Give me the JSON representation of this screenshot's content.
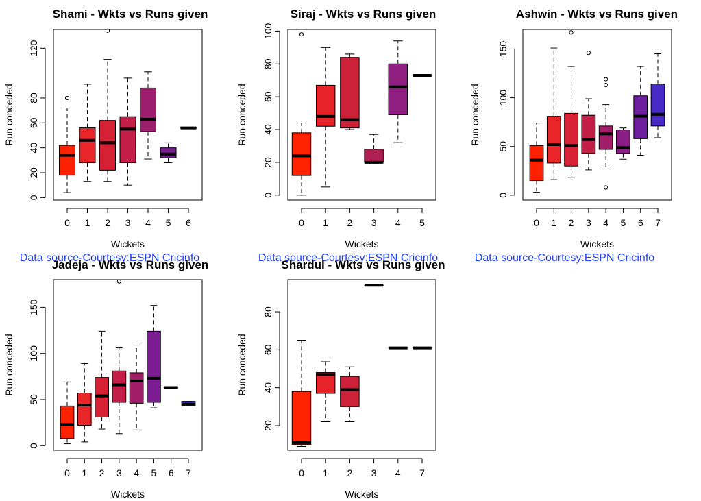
{
  "chart_data": [
    {
      "type": "boxplot",
      "title": "Shami - Wkts vs Runs given",
      "xlabel": "Wickets",
      "ylabel": "Run conceded",
      "ylim": [
        -2,
        135
      ],
      "yticks": [
        0,
        20,
        40,
        60,
        80,
        120
      ],
      "categories": [
        "0",
        "1",
        "2",
        "3",
        "4",
        "5",
        "6"
      ],
      "boxes": [
        {
          "x": "0",
          "min": 4,
          "q1": 18,
          "median": 34,
          "q3": 42,
          "max": 72,
          "outliers": [
            80
          ]
        },
        {
          "x": "1",
          "min": 13,
          "q1": 28,
          "median": 46,
          "q3": 56,
          "max": 91,
          "outliers": []
        },
        {
          "x": "2",
          "min": 13,
          "q1": 22,
          "median": 44,
          "q3": 62,
          "max": 111,
          "outliers": [
            134
          ]
        },
        {
          "x": "3",
          "min": 10,
          "q1": 28,
          "median": 55,
          "q3": 65,
          "max": 96,
          "outliers": []
        },
        {
          "x": "4",
          "min": 31,
          "q1": 53,
          "median": 63,
          "q3": 88,
          "max": 101,
          "outliers": []
        },
        {
          "x": "5",
          "min": 28,
          "q1": 32,
          "median": 35,
          "q3": 40,
          "max": 44,
          "outliers": []
        },
        {
          "x": "6",
          "min": 56,
          "q1": 56,
          "median": 56,
          "q3": 56,
          "max": 56,
          "outliers": []
        }
      ],
      "colors": [
        "#FF2200",
        "#E8262A",
        "#D62134",
        "#C41F47",
        "#9E1E6E",
        "#7A1E91",
        "#5A1FAE"
      ],
      "caption": "Data source-Courtesy:ESPN Cricinfo"
    },
    {
      "type": "boxplot",
      "title": "Siraj - Wkts vs Runs given",
      "xlabel": "Wickets",
      "ylabel": "Run conceded",
      "ylim": [
        -3,
        101
      ],
      "yticks": [
        0,
        20,
        40,
        60,
        80,
        100
      ],
      "categories": [
        "0",
        "1",
        "2",
        "3",
        "4",
        "5"
      ],
      "boxes": [
        {
          "x": "0",
          "min": 0,
          "q1": 12,
          "median": 24,
          "q3": 38,
          "max": 44,
          "outliers": [
            98
          ]
        },
        {
          "x": "1",
          "min": 5,
          "q1": 42,
          "median": 48,
          "q3": 67,
          "max": 90,
          "outliers": []
        },
        {
          "x": "2",
          "min": 40,
          "q1": 41,
          "median": 46,
          "q3": 84,
          "max": 86,
          "outliers": []
        },
        {
          "x": "3",
          "min": 19,
          "q1": 20,
          "median": 20,
          "q3": 28,
          "max": 37,
          "outliers": []
        },
        {
          "x": "4",
          "min": 32,
          "q1": 49,
          "median": 66,
          "q3": 80,
          "max": 94,
          "outliers": []
        },
        {
          "x": "5",
          "min": 73,
          "q1": 73,
          "median": 73,
          "q3": 73,
          "max": 73,
          "outliers": []
        }
      ],
      "colors": [
        "#FF2200",
        "#E62328",
        "#CC2138",
        "#B01F52",
        "#8E1E7F",
        "#6A1FA2"
      ],
      "caption": "Data source-Courtesy:ESPN Cricinfo"
    },
    {
      "type": "boxplot",
      "title": "Ashwin - Wkts vs Runs given",
      "xlabel": "Wickets",
      "ylabel": "Run conceded",
      "ylim": [
        -5,
        170
      ],
      "yticks": [
        0,
        50,
        100,
        150
      ],
      "categories": [
        "0",
        "1",
        "2",
        "3",
        "4",
        "5",
        "6",
        "7"
      ],
      "boxes": [
        {
          "x": "0",
          "min": 3,
          "q1": 15,
          "median": 36,
          "q3": 51,
          "max": 74,
          "outliers": []
        },
        {
          "x": "1",
          "min": 16,
          "q1": 33,
          "median": 52,
          "q3": 81,
          "max": 151,
          "outliers": []
        },
        {
          "x": "2",
          "min": 18,
          "q1": 30,
          "median": 51,
          "q3": 84,
          "max": 132,
          "outliers": [
            167
          ]
        },
        {
          "x": "3",
          "min": 26,
          "q1": 43,
          "median": 57,
          "q3": 82,
          "max": 99,
          "outliers": [
            146
          ]
        },
        {
          "x": "4",
          "min": 27,
          "q1": 47,
          "median": 63,
          "q3": 71,
          "max": 93,
          "outliers": [
            8,
            113,
            119
          ]
        },
        {
          "x": "5",
          "min": 37,
          "q1": 43,
          "median": 49,
          "q3": 67,
          "max": 69,
          "outliers": []
        },
        {
          "x": "6",
          "min": 41,
          "q1": 58,
          "median": 81,
          "q3": 102,
          "max": 132,
          "outliers": []
        },
        {
          "x": "7",
          "min": 59,
          "q1": 71,
          "median": 83,
          "q3": 114,
          "max": 145,
          "outliers": []
        }
      ],
      "colors": [
        "#FF2200",
        "#E8262A",
        "#D62134",
        "#C41F47",
        "#A31E69",
        "#8A1E84",
        "#6D1F9D",
        "#4A2AC4"
      ],
      "caption": "Data source-Courtesy:ESPN Cricinfo"
    },
    {
      "type": "boxplot",
      "title": "Jadeja - Wkts vs Runs given",
      "xlabel": "Wickets",
      "ylabel": "Run conceded",
      "ylim": [
        -5,
        180
      ],
      "yticks": [
        0,
        50,
        100,
        150
      ],
      "categories": [
        "0",
        "1",
        "2",
        "3",
        "4",
        "5",
        "6",
        "7"
      ],
      "boxes": [
        {
          "x": "0",
          "min": 2,
          "q1": 8,
          "median": 23,
          "q3": 43,
          "max": 69,
          "outliers": []
        },
        {
          "x": "1",
          "min": 4,
          "q1": 22,
          "median": 44,
          "q3": 57,
          "max": 89,
          "outliers": []
        },
        {
          "x": "2",
          "min": 18,
          "q1": 31,
          "median": 54,
          "q3": 74,
          "max": 124,
          "outliers": []
        },
        {
          "x": "3",
          "min": 13,
          "q1": 47,
          "median": 66,
          "q3": 81,
          "max": 106,
          "outliers": [
            178
          ]
        },
        {
          "x": "4",
          "min": 17,
          "q1": 46,
          "median": 70,
          "q3": 79,
          "max": 109,
          "outliers": []
        },
        {
          "x": "5",
          "min": 41,
          "q1": 47,
          "median": 73,
          "q3": 124,
          "max": 152,
          "outliers": []
        },
        {
          "x": "6",
          "min": 63,
          "q1": 63,
          "median": 63,
          "q3": 63,
          "max": 63,
          "outliers": []
        },
        {
          "x": "7",
          "min": 43,
          "q1": 43,
          "median": 45,
          "q3": 48,
          "max": 48,
          "outliers": []
        }
      ],
      "colors": [
        "#FF2200",
        "#E8262A",
        "#D62134",
        "#C41F47",
        "#A31E69",
        "#7A1E91",
        "#5A1FAE",
        "#3A35D8"
      ],
      "caption": ""
    },
    {
      "type": "boxplot",
      "title": "Shardul - Wkts vs Runs given",
      "xlabel": "Wickets",
      "ylabel": "Run conceded",
      "ylim": [
        7,
        97
      ],
      "yticks": [
        20,
        40,
        60,
        80
      ],
      "categories": [
        "0",
        "1",
        "2",
        "3",
        "4",
        "7"
      ],
      "boxes": [
        {
          "x": "0",
          "min": 9,
          "q1": 10,
          "median": 11,
          "q3": 38,
          "max": 65,
          "outliers": []
        },
        {
          "x": "1",
          "min": 22,
          "q1": 37,
          "median": 47,
          "q3": 48,
          "max": 54,
          "outliers": []
        },
        {
          "x": "2",
          "min": 22,
          "q1": 30,
          "median": 39,
          "q3": 46,
          "max": 51,
          "outliers": []
        },
        {
          "x": "3",
          "min": 94,
          "q1": 94,
          "median": 94,
          "q3": 94,
          "max": 94,
          "outliers": []
        },
        {
          "x": "4",
          "min": 61,
          "q1": 61,
          "median": 61,
          "q3": 61,
          "max": 61,
          "outliers": []
        },
        {
          "x": "7",
          "min": 61,
          "q1": 61,
          "median": 61,
          "q3": 61,
          "max": 61,
          "outliers": []
        }
      ],
      "colors": [
        "#FF2200",
        "#E62328",
        "#CC2138",
        "#B01F52",
        "#8E1E7F",
        "#6A1FA2"
      ],
      "caption": ""
    }
  ]
}
